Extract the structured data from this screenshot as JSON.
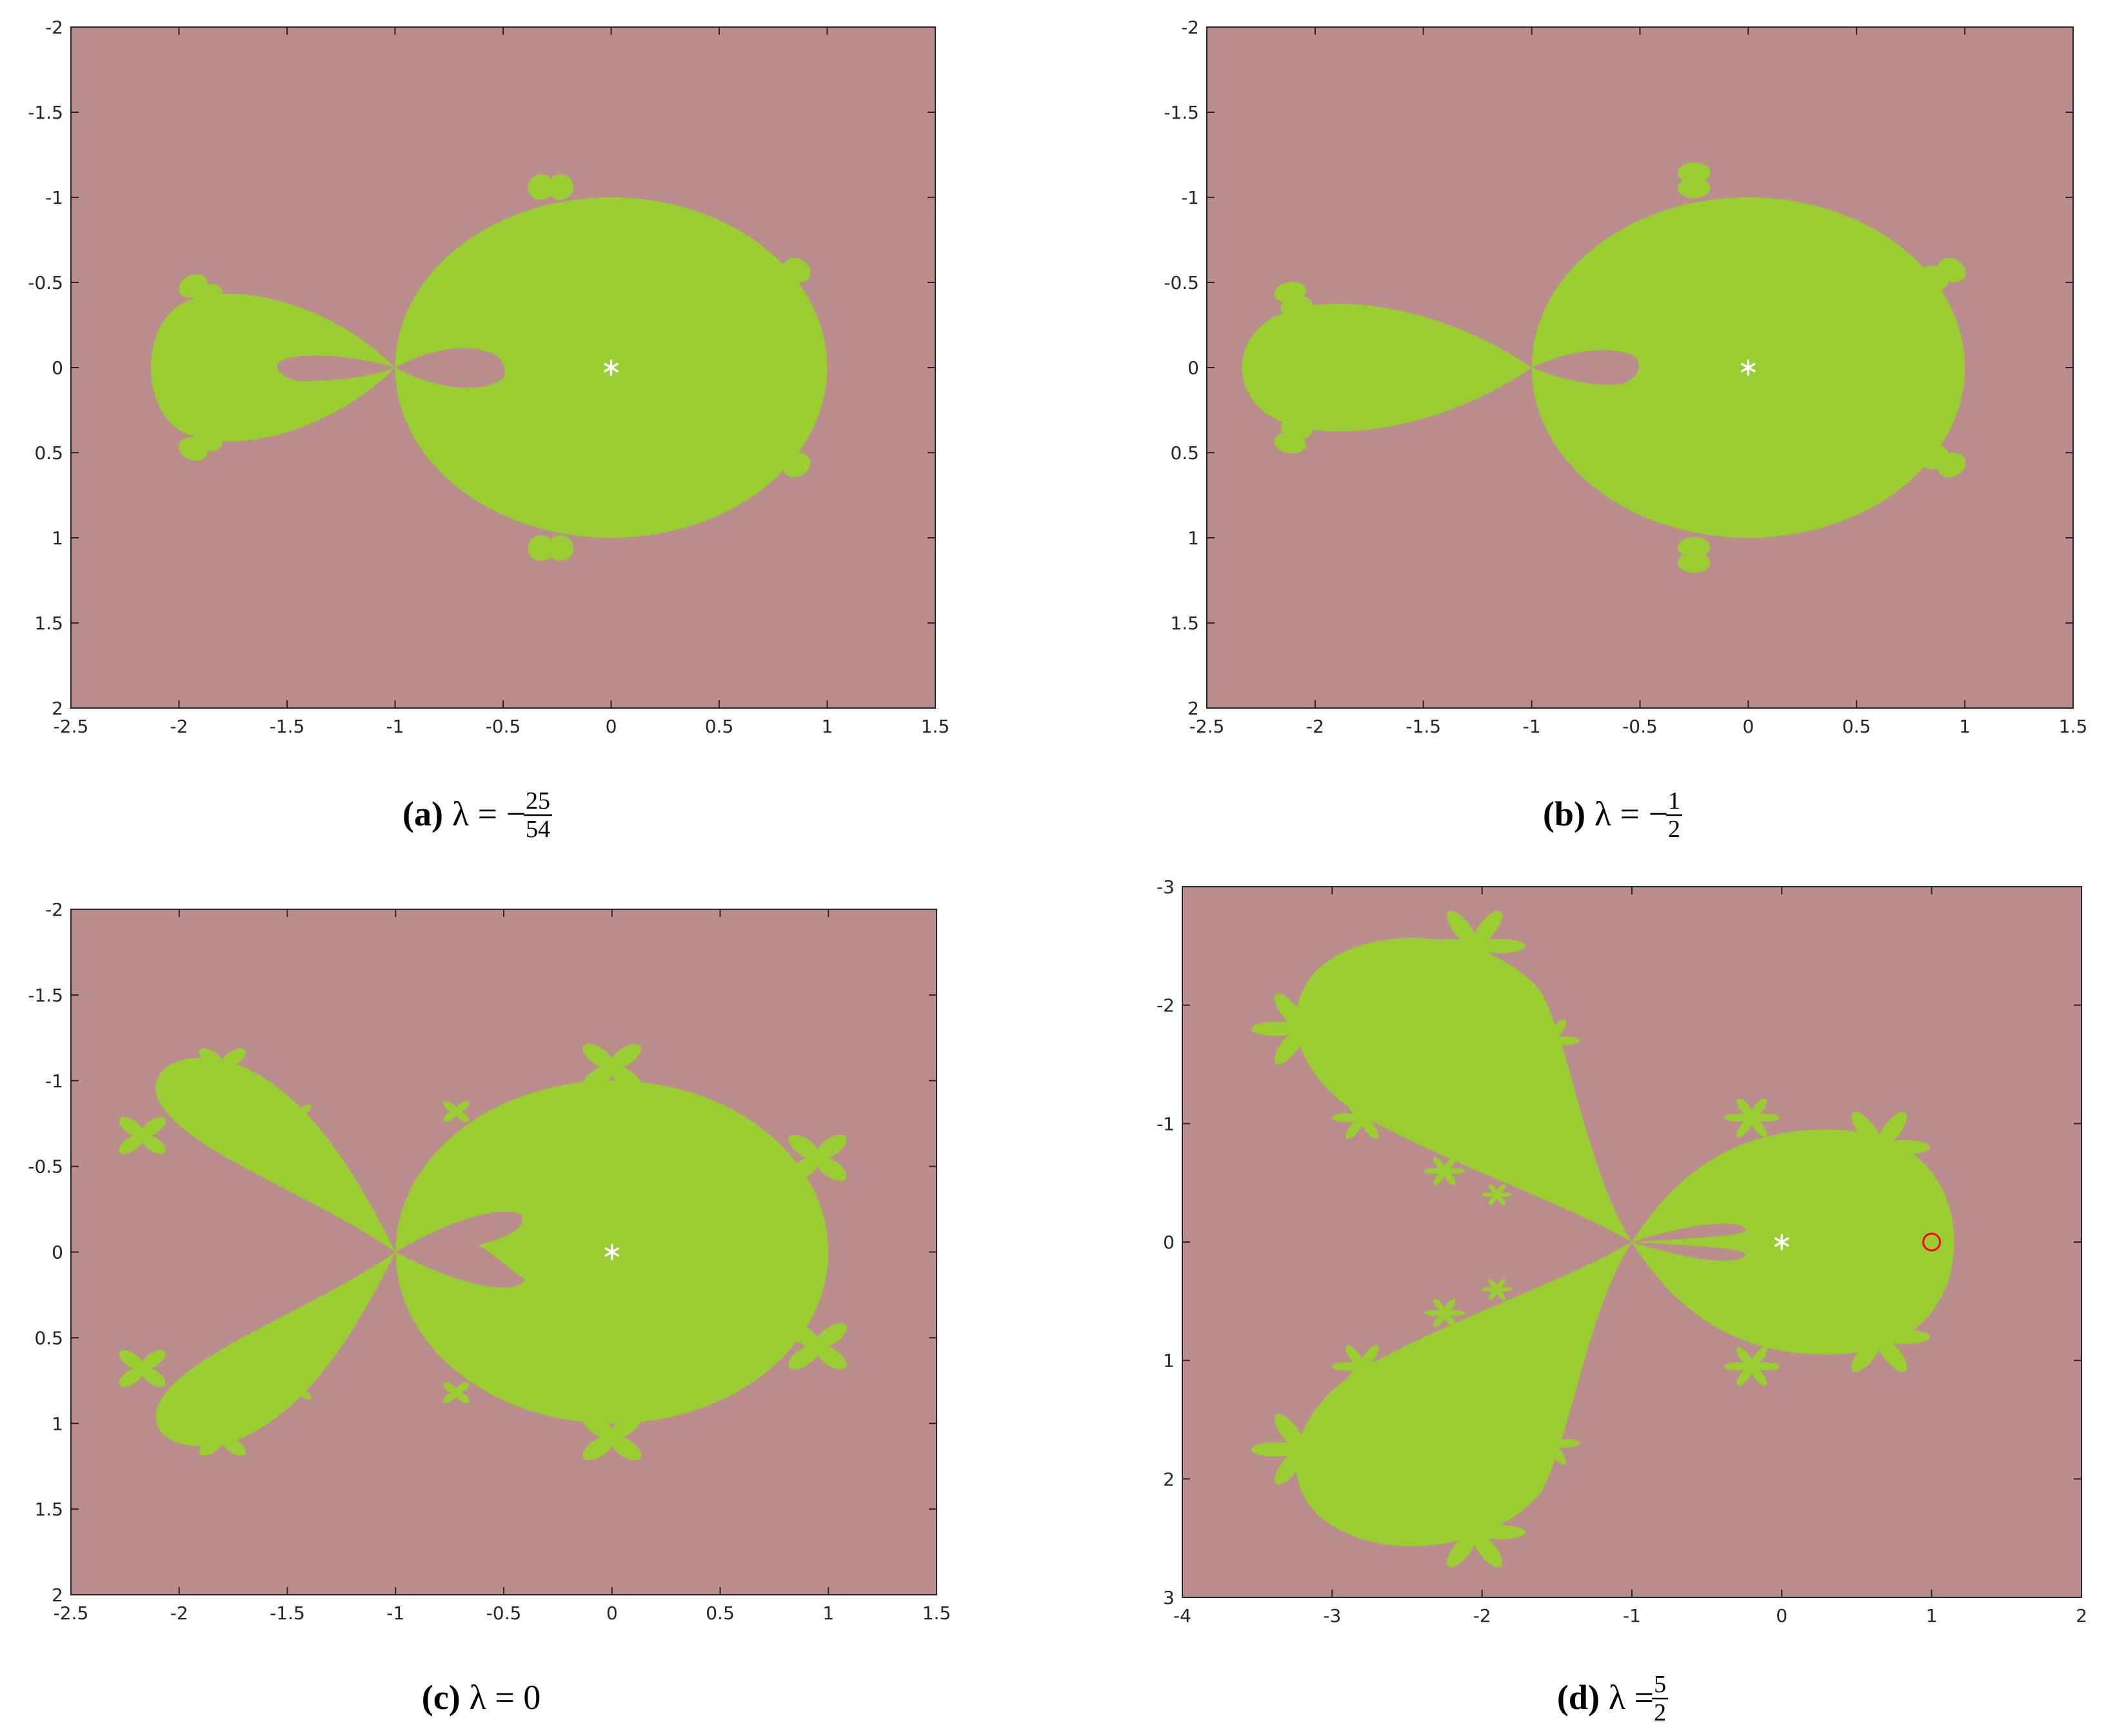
{
  "chart_data": [
    {
      "type": "scatter",
      "caption": {
        "label": "(a)",
        "text": "λ = −",
        "numerator": "25",
        "denominator": "54"
      },
      "xlim": [
        -2.5,
        1.5
      ],
      "xticks": [
        -2.5,
        -2,
        -1.5,
        -1,
        -0.5,
        0,
        0.5,
        1,
        1.5
      ],
      "ylim": [
        -2,
        2
      ],
      "yticks": [
        -2,
        -1.5,
        -1,
        -0.5,
        0,
        0.5,
        1,
        1.5,
        2
      ],
      "y_inverted": true,
      "background": "#bb8d8d",
      "basin_color": "#9acd32",
      "series": [
        {
          "marker": "asterisk",
          "color": "#ffffff",
          "x": [
            0
          ],
          "values": [
            0
          ]
        }
      ]
    },
    {
      "type": "scatter",
      "caption": {
        "label": "(b)",
        "text": "λ = −",
        "numerator": "1",
        "denominator": "2"
      },
      "xlim": [
        -2.5,
        1.5
      ],
      "xticks": [
        -2.5,
        -2,
        -1.5,
        -1,
        -0.5,
        0,
        0.5,
        1,
        1.5
      ],
      "ylim": [
        -2,
        2
      ],
      "yticks": [
        -2,
        -1.5,
        -1,
        -0.5,
        0,
        0.5,
        1,
        1.5,
        2
      ],
      "y_inverted": true,
      "background": "#bb8d8d",
      "basin_color": "#9acd32",
      "series": [
        {
          "marker": "asterisk",
          "color": "#ffffff",
          "x": [
            0
          ],
          "values": [
            0
          ]
        }
      ]
    },
    {
      "type": "scatter",
      "caption": {
        "label": "(c)",
        "text": "λ = 0"
      },
      "xlim": [
        -2.5,
        1.5
      ],
      "xticks": [
        -2.5,
        -2,
        -1.5,
        -1,
        -0.5,
        0,
        0.5,
        1,
        1.5
      ],
      "ylim": [
        -2,
        2
      ],
      "yticks": [
        -2,
        -1.5,
        -1,
        -0.5,
        0,
        0.5,
        1,
        1.5,
        2
      ],
      "y_inverted": true,
      "background": "#bb8d8d",
      "basin_color": "#9acd32",
      "series": [
        {
          "marker": "asterisk",
          "color": "#ffffff",
          "x": [
            0
          ],
          "values": [
            0
          ]
        }
      ]
    },
    {
      "type": "scatter",
      "caption": {
        "label": "(d)",
        "text": "λ =",
        "numerator": "5",
        "denominator": "2"
      },
      "xlim": [
        -4,
        2
      ],
      "xticks": [
        -4,
        -3,
        -2,
        -1,
        0,
        1,
        2
      ],
      "ylim": [
        -3,
        3
      ],
      "yticks": [
        -3,
        -2,
        -1,
        0,
        1,
        2,
        3
      ],
      "y_inverted": true,
      "background": "#bb8d8d",
      "basin_color": "#9acd32",
      "series": [
        {
          "marker": "asterisk",
          "color": "#ffffff",
          "x": [
            0
          ],
          "values": [
            0
          ]
        },
        {
          "marker": "circle",
          "color": "#ff0000",
          "x": [
            1
          ],
          "values": [
            0
          ]
        }
      ]
    }
  ]
}
